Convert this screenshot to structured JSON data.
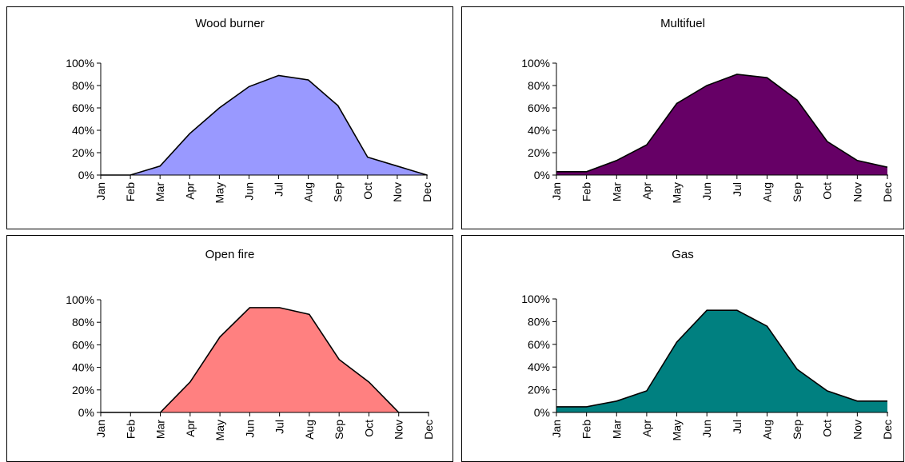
{
  "chart_data": [
    {
      "type": "area",
      "title": "Wood burner",
      "categories": [
        "Jan",
        "Feb",
        "Mar",
        "Apr",
        "May",
        "Jun",
        "Jul",
        "Aug",
        "Sep",
        "Oct",
        "Nov",
        "Dec"
      ],
      "values": [
        0,
        0,
        8,
        37,
        60,
        79,
        89,
        85,
        62,
        16,
        8,
        0
      ],
      "ylim": [
        0,
        100
      ],
      "yticks": [
        "0%",
        "20%",
        "40%",
        "60%",
        "80%",
        "100%"
      ],
      "color": "#9999FF",
      "grid": false
    },
    {
      "type": "area",
      "title": "Multifuel",
      "categories": [
        "Jan",
        "Feb",
        "Mar",
        "Apr",
        "May",
        "Jun",
        "Jul",
        "Aug",
        "Sep",
        "Oct",
        "Nov",
        "Dec"
      ],
      "values": [
        3,
        3,
        13,
        27,
        64,
        80,
        90,
        87,
        67,
        30,
        13,
        7
      ],
      "ylim": [
        0,
        100
      ],
      "yticks": [
        "0%",
        "20%",
        "40%",
        "60%",
        "80%",
        "100%"
      ],
      "color": "#660066",
      "grid": false
    },
    {
      "type": "area",
      "title": "Open fire",
      "categories": [
        "Jan",
        "Feb",
        "Mar",
        "Apr",
        "May",
        "Jun",
        "Jul",
        "Aug",
        "Sep",
        "Oct",
        "Nov",
        "Dec"
      ],
      "values": [
        0,
        0,
        0,
        27,
        67,
        93,
        93,
        87,
        47,
        27,
        0,
        0
      ],
      "ylim": [
        0,
        100
      ],
      "yticks": [
        "0%",
        "20%",
        "40%",
        "60%",
        "80%",
        "100%"
      ],
      "color": "#FF8080",
      "grid": false
    },
    {
      "type": "area",
      "title": "Gas",
      "categories": [
        "Jan",
        "Feb",
        "Mar",
        "Apr",
        "May",
        "Jun",
        "Jul",
        "Aug",
        "Sep",
        "Oct",
        "Nov",
        "Dec"
      ],
      "values": [
        5,
        5,
        10,
        19,
        62,
        90,
        90,
        76,
        38,
        19,
        10,
        10
      ],
      "ylim": [
        0,
        100
      ],
      "yticks": [
        "0%",
        "20%",
        "40%",
        "60%",
        "80%",
        "100%"
      ],
      "color": "#008080",
      "grid": false
    }
  ]
}
